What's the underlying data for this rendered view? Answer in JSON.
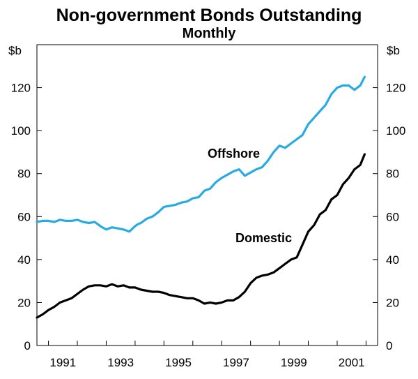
{
  "chart_data": {
    "type": "line",
    "title": "Non-government Bonds Outstanding",
    "subtitle": "Monthly",
    "y_unit_left": "$b",
    "y_unit_right": "$b",
    "ylim": [
      0,
      140
    ],
    "yticks": [
      0,
      20,
      40,
      60,
      80,
      100,
      120
    ],
    "xlim": [
      1989.6,
      2001.4
    ],
    "xticks": [
      1991,
      1993,
      1995,
      1997,
      1999,
      2001
    ],
    "grid": false,
    "series": [
      {
        "name": "Offshore",
        "color": "#29abe2",
        "x": [
          1989.6,
          1989.8,
          1990.0,
          1990.2,
          1990.4,
          1990.6,
          1990.8,
          1991.0,
          1991.2,
          1991.4,
          1991.6,
          1991.8,
          1992.0,
          1992.2,
          1992.4,
          1992.6,
          1992.8,
          1993.0,
          1993.1,
          1993.2,
          1993.4,
          1993.6,
          1993.8,
          1994.0,
          1994.2,
          1994.4,
          1994.6,
          1994.8,
          1995.0,
          1995.2,
          1995.4,
          1995.6,
          1995.8,
          1996.0,
          1996.2,
          1996.4,
          1996.6,
          1996.8,
          1997.0,
          1997.2,
          1997.4,
          1997.6,
          1997.8,
          1998.0,
          1998.2,
          1998.4,
          1998.6,
          1998.8,
          1999.0,
          1999.2,
          1999.4,
          1999.6,
          1999.8,
          2000.0,
          2000.2,
          2000.4,
          2000.6,
          2000.8,
          2000.95
        ],
        "values": [
          57.5,
          58,
          58,
          57.5,
          58.5,
          58,
          58,
          58.5,
          57.5,
          57,
          57.5,
          55.5,
          54,
          55,
          54.5,
          54,
          53,
          55.5,
          56.5,
          57,
          59,
          60,
          62,
          64.5,
          65,
          65.5,
          66.5,
          67,
          68.5,
          69,
          72,
          73,
          76,
          78,
          79.5,
          81,
          82,
          79,
          80.5,
          82,
          83,
          86,
          90,
          93,
          92,
          94,
          96,
          98,
          103,
          106,
          109,
          112,
          117,
          120,
          121,
          121,
          119,
          121,
          125
        ]
      },
      {
        "name": "Domestic",
        "color": "#000000",
        "x": [
          1989.6,
          1989.8,
          1990.0,
          1990.2,
          1990.4,
          1990.6,
          1990.8,
          1991.0,
          1991.2,
          1991.4,
          1991.6,
          1991.8,
          1992.0,
          1992.2,
          1992.4,
          1992.6,
          1992.8,
          1993.0,
          1993.2,
          1993.4,
          1993.6,
          1993.8,
          1994.0,
          1994.2,
          1994.4,
          1994.6,
          1994.8,
          1995.0,
          1995.2,
          1995.4,
          1995.6,
          1995.8,
          1996.0,
          1996.2,
          1996.4,
          1996.6,
          1996.8,
          1997.0,
          1997.2,
          1997.4,
          1997.6,
          1997.8,
          1998.0,
          1998.2,
          1998.4,
          1998.6,
          1998.8,
          1999.0,
          1999.2,
          1999.4,
          1999.6,
          1999.8,
          2000.0,
          2000.2,
          2000.4,
          2000.6,
          2000.8,
          2000.95
        ],
        "values": [
          13,
          14.5,
          16.5,
          18,
          20,
          21,
          22,
          24,
          26,
          27.5,
          28,
          28,
          27.5,
          28.5,
          27.5,
          28,
          27,
          27,
          26,
          25.5,
          25,
          25,
          24.5,
          23.5,
          23,
          22.5,
          22,
          22,
          21,
          19.5,
          20,
          19.5,
          20,
          21,
          21,
          22.5,
          25,
          29,
          31.5,
          32.5,
          33,
          34,
          36,
          38,
          40,
          41,
          47,
          53,
          56,
          61,
          63,
          68,
          70,
          75,
          78,
          82,
          84,
          89
        ]
      }
    ],
    "annotations": [
      "Offshore",
      "Domestic"
    ]
  }
}
